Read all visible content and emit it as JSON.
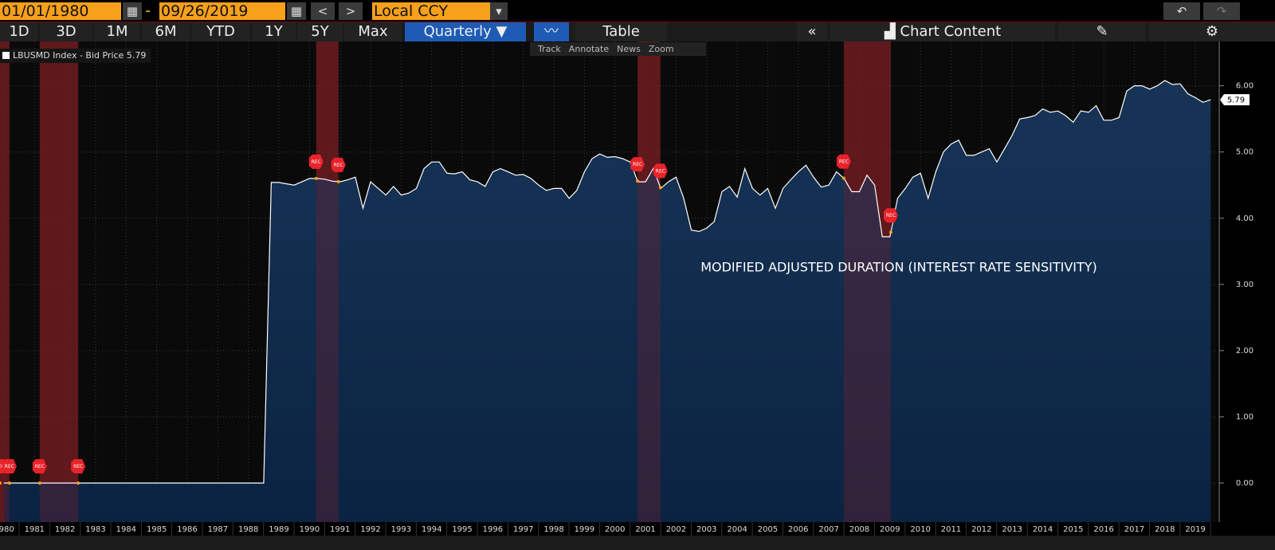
{
  "toolbar": {
    "start_date": "01/01/1980",
    "date_separator": "-",
    "end_date": "09/26/2019",
    "currency": "Local CCY",
    "periods": [
      "1D",
      "3D",
      "1M",
      "6M",
      "YTD",
      "1Y",
      "5Y",
      "Max"
    ],
    "frequency": "Quarterly",
    "table": "Table",
    "chart_content": "Chart Content",
    "tools": [
      "Track",
      "Annotate",
      "News",
      "Zoom"
    ]
  },
  "chart_data": {
    "type": "area",
    "annotation": "MODIFIED ADJUSTED DURATION (INTEREST RATE SENSITIVITY)",
    "recession_label": "REC",
    "recessions": [
      [
        1979.87,
        1980.18
      ],
      [
        1981.17,
        1982.43
      ],
      [
        1990.22,
        1990.95
      ],
      [
        2000.74,
        2001.49
      ],
      [
        2007.49,
        2009.03
      ]
    ],
    "xlim": [
      1979.87,
      2019.7
    ],
    "xticks": [
      1980,
      1981,
      1982,
      1983,
      1984,
      1985,
      1986,
      1987,
      1988,
      1989,
      1990,
      1991,
      1992,
      1993,
      1994,
      1995,
      1996,
      1997,
      1998,
      1999,
      2000,
      2001,
      2002,
      2003,
      2004,
      2005,
      2006,
      2007,
      2008,
      2009,
      2010,
      2011,
      2012,
      2013,
      2014,
      2015,
      2016,
      2017,
      2018,
      2019
    ],
    "ylim": [
      -0.59,
      6.67
    ],
    "yticks": [
      {
        "value": 0,
        "label": "0.00"
      },
      {
        "value": 1,
        "label": "1.00"
      },
      {
        "value": 2,
        "label": "2.00"
      },
      {
        "value": 3,
        "label": "3.00"
      },
      {
        "value": 4,
        "label": "4.00"
      },
      {
        "value": 5,
        "label": "5.00"
      },
      {
        "value": 6,
        "label": "6.00"
      }
    ],
    "grid": true,
    "x": [
      1980,
      1988.5,
      1988.75,
      1989,
      1989.25,
      1989.5,
      1989.75,
      1990,
      1990.25,
      1990.5,
      1990.75,
      1991,
      1991.25,
      1991.5,
      1991.75,
      1992,
      1992.25,
      1992.5,
      1992.75,
      1993,
      1993.25,
      1993.5,
      1993.75,
      1994,
      1994.25,
      1994.5,
      1994.75,
      1995,
      1995.25,
      1995.5,
      1995.75,
      1996,
      1996.25,
      1996.5,
      1996.75,
      1997,
      1997.25,
      1997.5,
      1997.75,
      1998,
      1998.25,
      1998.5,
      1998.75,
      1999,
      1999.25,
      1999.5,
      1999.75,
      2000,
      2000.25,
      2000.5,
      2000.75,
      2001,
      2001.25,
      2001.5,
      2001.75,
      2002,
      2002.25,
      2002.5,
      2002.75,
      2003,
      2003.25,
      2003.5,
      2003.75,
      2004,
      2004.25,
      2004.5,
      2004.75,
      2005,
      2005.25,
      2005.5,
      2005.75,
      2006,
      2006.25,
      2006.5,
      2006.75,
      2007,
      2007.25,
      2007.5,
      2007.75,
      2008,
      2008.25,
      2008.5,
      2008.75,
      2009,
      2009.25,
      2009.5,
      2009.75,
      2010,
      2010.25,
      2010.5,
      2010.75,
      2011,
      2011.25,
      2011.5,
      2011.75,
      2012,
      2012.25,
      2012.5,
      2012.75,
      2013,
      2013.25,
      2013.5,
      2013.75,
      2014,
      2014.25,
      2014.5,
      2014.75,
      2015,
      2015.25,
      2015.5,
      2015.75,
      2016,
      2016.25,
      2016.5,
      2016.75,
      2017,
      2017.25,
      2017.5,
      2017.75,
      2018,
      2018.25,
      2018.5,
      2018.75,
      2019,
      2019.25,
      2019.5
    ],
    "series": [
      {
        "name": "LBUSMD Index - Bid Price",
        "color": "#ffffff",
        "values": [
          0,
          0,
          4.54,
          4.54,
          4.52,
          4.5,
          4.55,
          4.6,
          4.6,
          4.59,
          4.56,
          4.55,
          4.58,
          4.62,
          4.15,
          4.55,
          4.45,
          4.35,
          4.48,
          4.35,
          4.38,
          4.45,
          4.75,
          4.85,
          4.85,
          4.68,
          4.67,
          4.7,
          4.58,
          4.55,
          4.48,
          4.7,
          4.75,
          4.7,
          4.65,
          4.66,
          4.6,
          4.5,
          4.42,
          4.45,
          4.45,
          4.3,
          4.42,
          4.7,
          4.9,
          4.97,
          4.92,
          4.93,
          4.9,
          4.85,
          4.55,
          4.55,
          4.75,
          4.45,
          4.55,
          4.62,
          4.3,
          3.82,
          3.8,
          3.85,
          3.95,
          4.4,
          4.48,
          4.32,
          4.75,
          4.45,
          4.35,
          4.45,
          4.15,
          4.45,
          4.58,
          4.7,
          4.8,
          4.62,
          4.47,
          4.5,
          4.7,
          4.6,
          4.4,
          4.4,
          4.65,
          4.5,
          3.72,
          3.72,
          4.3,
          4.45,
          4.62,
          4.68,
          4.3,
          4.7,
          5.0,
          5.12,
          5.18,
          4.95,
          4.95,
          5.0,
          5.05,
          4.85,
          5.05,
          5.25,
          5.5,
          5.52,
          5.55,
          5.65,
          5.6,
          5.62,
          5.55,
          5.45,
          5.62,
          5.6,
          5.7,
          5.48,
          5.48,
          5.52,
          5.92,
          6.0,
          6.0,
          5.95,
          6.0,
          6.08,
          6.02,
          6.03,
          5.88,
          5.82,
          5.75,
          5.79
        ]
      }
    ]
  }
}
